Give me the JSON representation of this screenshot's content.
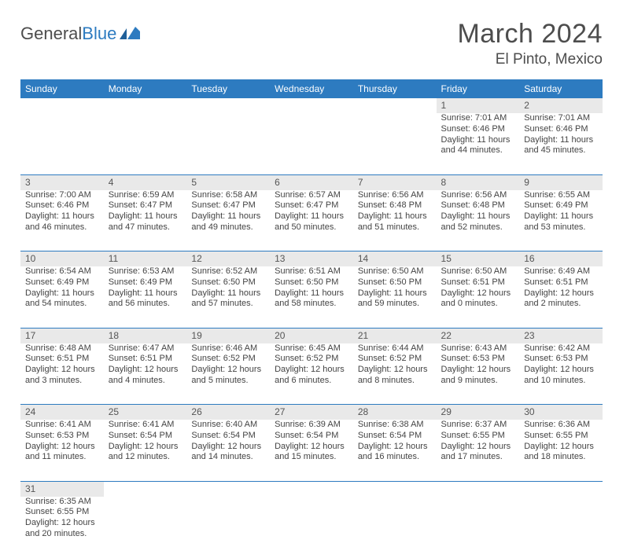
{
  "brand": {
    "name_a": "General",
    "name_b": "Blue"
  },
  "title": "March 2024",
  "location": "El Pinto, Mexico",
  "colors": {
    "header_bg": "#2d7bc0",
    "daynum_bg": "#e9e9e9",
    "rule": "#2d7bc0",
    "text": "#4d4d4d"
  },
  "day_headers": [
    "Sunday",
    "Monday",
    "Tuesday",
    "Wednesday",
    "Thursday",
    "Friday",
    "Saturday"
  ],
  "weeks": [
    {
      "nums": [
        "",
        "",
        "",
        "",
        "",
        "1",
        "2"
      ],
      "cells": [
        null,
        null,
        null,
        null,
        null,
        {
          "sr": "Sunrise: 7:01 AM",
          "ss": "Sunset: 6:46 PM",
          "dl": "Daylight: 11 hours and 44 minutes."
        },
        {
          "sr": "Sunrise: 7:01 AM",
          "ss": "Sunset: 6:46 PM",
          "dl": "Daylight: 11 hours and 45 minutes."
        }
      ]
    },
    {
      "nums": [
        "3",
        "4",
        "5",
        "6",
        "7",
        "8",
        "9"
      ],
      "cells": [
        {
          "sr": "Sunrise: 7:00 AM",
          "ss": "Sunset: 6:46 PM",
          "dl": "Daylight: 11 hours and 46 minutes."
        },
        {
          "sr": "Sunrise: 6:59 AM",
          "ss": "Sunset: 6:47 PM",
          "dl": "Daylight: 11 hours and 47 minutes."
        },
        {
          "sr": "Sunrise: 6:58 AM",
          "ss": "Sunset: 6:47 PM",
          "dl": "Daylight: 11 hours and 49 minutes."
        },
        {
          "sr": "Sunrise: 6:57 AM",
          "ss": "Sunset: 6:47 PM",
          "dl": "Daylight: 11 hours and 50 minutes."
        },
        {
          "sr": "Sunrise: 6:56 AM",
          "ss": "Sunset: 6:48 PM",
          "dl": "Daylight: 11 hours and 51 minutes."
        },
        {
          "sr": "Sunrise: 6:56 AM",
          "ss": "Sunset: 6:48 PM",
          "dl": "Daylight: 11 hours and 52 minutes."
        },
        {
          "sr": "Sunrise: 6:55 AM",
          "ss": "Sunset: 6:49 PM",
          "dl": "Daylight: 11 hours and 53 minutes."
        }
      ]
    },
    {
      "nums": [
        "10",
        "11",
        "12",
        "13",
        "14",
        "15",
        "16"
      ],
      "cells": [
        {
          "sr": "Sunrise: 6:54 AM",
          "ss": "Sunset: 6:49 PM",
          "dl": "Daylight: 11 hours and 54 minutes."
        },
        {
          "sr": "Sunrise: 6:53 AM",
          "ss": "Sunset: 6:49 PM",
          "dl": "Daylight: 11 hours and 56 minutes."
        },
        {
          "sr": "Sunrise: 6:52 AM",
          "ss": "Sunset: 6:50 PM",
          "dl": "Daylight: 11 hours and 57 minutes."
        },
        {
          "sr": "Sunrise: 6:51 AM",
          "ss": "Sunset: 6:50 PM",
          "dl": "Daylight: 11 hours and 58 minutes."
        },
        {
          "sr": "Sunrise: 6:50 AM",
          "ss": "Sunset: 6:50 PM",
          "dl": "Daylight: 11 hours and 59 minutes."
        },
        {
          "sr": "Sunrise: 6:50 AM",
          "ss": "Sunset: 6:51 PM",
          "dl": "Daylight: 12 hours and 0 minutes."
        },
        {
          "sr": "Sunrise: 6:49 AM",
          "ss": "Sunset: 6:51 PM",
          "dl": "Daylight: 12 hours and 2 minutes."
        }
      ]
    },
    {
      "nums": [
        "17",
        "18",
        "19",
        "20",
        "21",
        "22",
        "23"
      ],
      "cells": [
        {
          "sr": "Sunrise: 6:48 AM",
          "ss": "Sunset: 6:51 PM",
          "dl": "Daylight: 12 hours and 3 minutes."
        },
        {
          "sr": "Sunrise: 6:47 AM",
          "ss": "Sunset: 6:51 PM",
          "dl": "Daylight: 12 hours and 4 minutes."
        },
        {
          "sr": "Sunrise: 6:46 AM",
          "ss": "Sunset: 6:52 PM",
          "dl": "Daylight: 12 hours and 5 minutes."
        },
        {
          "sr": "Sunrise: 6:45 AM",
          "ss": "Sunset: 6:52 PM",
          "dl": "Daylight: 12 hours and 6 minutes."
        },
        {
          "sr": "Sunrise: 6:44 AM",
          "ss": "Sunset: 6:52 PM",
          "dl": "Daylight: 12 hours and 8 minutes."
        },
        {
          "sr": "Sunrise: 6:43 AM",
          "ss": "Sunset: 6:53 PM",
          "dl": "Daylight: 12 hours and 9 minutes."
        },
        {
          "sr": "Sunrise: 6:42 AM",
          "ss": "Sunset: 6:53 PM",
          "dl": "Daylight: 12 hours and 10 minutes."
        }
      ]
    },
    {
      "nums": [
        "24",
        "25",
        "26",
        "27",
        "28",
        "29",
        "30"
      ],
      "cells": [
        {
          "sr": "Sunrise: 6:41 AM",
          "ss": "Sunset: 6:53 PM",
          "dl": "Daylight: 12 hours and 11 minutes."
        },
        {
          "sr": "Sunrise: 6:41 AM",
          "ss": "Sunset: 6:54 PM",
          "dl": "Daylight: 12 hours and 12 minutes."
        },
        {
          "sr": "Sunrise: 6:40 AM",
          "ss": "Sunset: 6:54 PM",
          "dl": "Daylight: 12 hours and 14 minutes."
        },
        {
          "sr": "Sunrise: 6:39 AM",
          "ss": "Sunset: 6:54 PM",
          "dl": "Daylight: 12 hours and 15 minutes."
        },
        {
          "sr": "Sunrise: 6:38 AM",
          "ss": "Sunset: 6:54 PM",
          "dl": "Daylight: 12 hours and 16 minutes."
        },
        {
          "sr": "Sunrise: 6:37 AM",
          "ss": "Sunset: 6:55 PM",
          "dl": "Daylight: 12 hours and 17 minutes."
        },
        {
          "sr": "Sunrise: 6:36 AM",
          "ss": "Sunset: 6:55 PM",
          "dl": "Daylight: 12 hours and 18 minutes."
        }
      ]
    },
    {
      "nums": [
        "31",
        "",
        "",
        "",
        "",
        "",
        ""
      ],
      "cells": [
        {
          "sr": "Sunrise: 6:35 AM",
          "ss": "Sunset: 6:55 PM",
          "dl": "Daylight: 12 hours and 20 minutes."
        },
        null,
        null,
        null,
        null,
        null,
        null
      ],
      "last": true
    }
  ]
}
